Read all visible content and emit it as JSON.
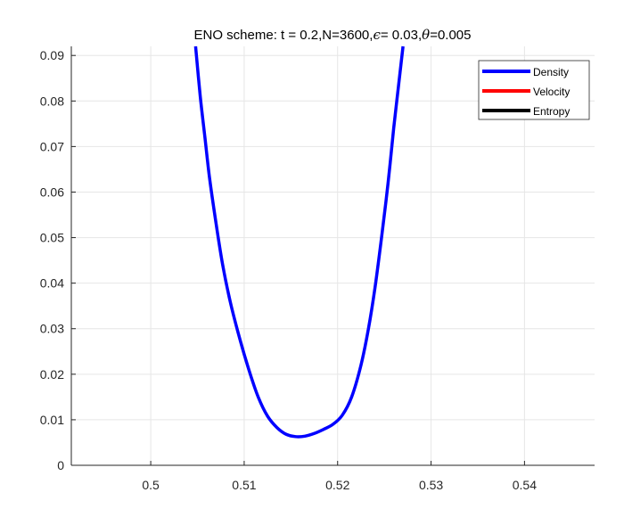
{
  "chart_data": {
    "type": "line",
    "title": "ENO scheme:  t = 0.2,N=3600,ϵ= 0.03,θ=0.005",
    "title_parts": {
      "prefix": "ENO scheme:  t = 0.2,N=3600,",
      "eps_symbol": "ϵ",
      "eps_value": "= 0.03,",
      "theta_symbol": "θ",
      "theta_value": "=0.005"
    },
    "xlabel": "",
    "ylabel": "",
    "xlim": [
      0.4915,
      0.5475
    ],
    "ylim": [
      0,
      0.092
    ],
    "xticks": [
      0.5,
      0.51,
      0.52,
      0.53,
      0.54
    ],
    "xtick_labels": [
      "0.5",
      "0.51",
      "0.52",
      "0.53",
      "0.54"
    ],
    "yticks": [
      0,
      0.01,
      0.02,
      0.03,
      0.04,
      0.05,
      0.06,
      0.07,
      0.08,
      0.09
    ],
    "ytick_labels": [
      "0",
      "0.01",
      "0.02",
      "0.03",
      "0.04",
      "0.05",
      "0.06",
      "0.07",
      "0.08",
      "0.09"
    ],
    "grid": true,
    "legend_position": "top-right",
    "series": [
      {
        "name": "Density",
        "color": "#0000ff",
        "x": [
          0.5048,
          0.5053,
          0.5058,
          0.5063,
          0.507,
          0.5077,
          0.5085,
          0.5095,
          0.5105,
          0.5115,
          0.5125,
          0.5135,
          0.5145,
          0.5155,
          0.5165,
          0.5175,
          0.5185,
          0.5195,
          0.5205,
          0.5215,
          0.5225,
          0.5233,
          0.524,
          0.5247,
          0.5254,
          0.526,
          0.5265,
          0.527
        ],
        "y": [
          0.092,
          0.081,
          0.072,
          0.063,
          0.053,
          0.044,
          0.036,
          0.028,
          0.021,
          0.015,
          0.0108,
          0.0083,
          0.0068,
          0.0063,
          0.0064,
          0.007,
          0.0079,
          0.009,
          0.011,
          0.015,
          0.022,
          0.03,
          0.039,
          0.05,
          0.062,
          0.074,
          0.083,
          0.092
        ]
      },
      {
        "name": "Velocity",
        "color": "#ff0000",
        "x": [],
        "y": []
      },
      {
        "name": "Entropy",
        "color": "#000000",
        "x": [],
        "y": []
      }
    ]
  }
}
